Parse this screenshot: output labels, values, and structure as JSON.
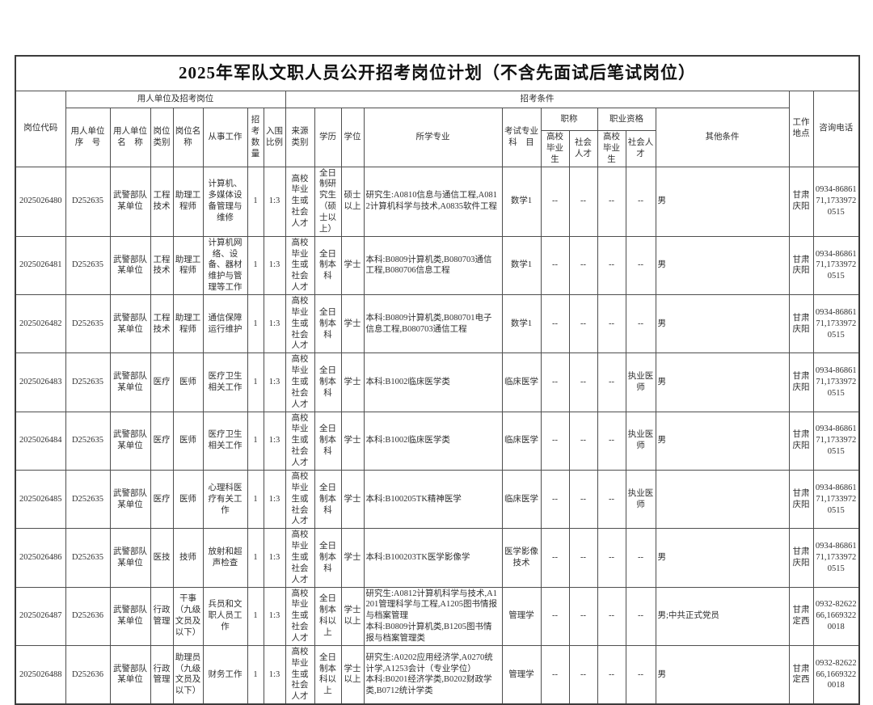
{
  "page": {
    "title": "2025年军队文职人员公开招考岗位计划（不含先面试后笔试岗位）"
  },
  "table": {
    "headers": {
      "code": "岗位代码",
      "employer_group": "用人单位及招考岗位",
      "conditions_group": "招考条件",
      "serial": "用人单位序　号",
      "unit": "用人单位名　称",
      "category": "岗位类别",
      "post": "岗位名称",
      "work": "从事工作",
      "count": "招考数量",
      "ratio": "入围比例",
      "source": "来源类别",
      "edu": "学历",
      "degree": "学位",
      "majors": "所学专业",
      "subject": "考试专业科　目",
      "title_group": "职称",
      "qual_group": "职业资格",
      "other": "其他条件",
      "location": "工作地点",
      "phone": "咨询电话"
    },
    "subsub": [
      "高校毕业生",
      "社会人才",
      "高校毕业生",
      "社会人才"
    ],
    "field_order": [
      "code",
      "serial",
      "unit",
      "category",
      "post",
      "work",
      "count",
      "ratio",
      "source",
      "edu",
      "degree",
      "majors",
      "subject",
      "title_grad",
      "title_social",
      "qual_grad",
      "qual_social",
      "other",
      "location",
      "phone"
    ],
    "rows": [
      {
        "code": "2025026480",
        "serial": "D252635",
        "unit": "武警部队某单位",
        "category": "工程技术",
        "post": "助理工程师",
        "work": "计算机、多媒体设备管理与维修",
        "count": "1",
        "ratio": "1:3",
        "source": "高校毕业生或社会人才",
        "edu": "全日制研究生（硕士以上）",
        "degree": "硕士以上",
        "majors": "研究生:A0810信息与通信工程,A0812计算机科学与技术,A0835软件工程",
        "subject": "数学1",
        "title_grad": "--",
        "title_social": "--",
        "qual_grad": "--",
        "qual_social": "--",
        "other": "男",
        "location": "甘肃庆阳",
        "phone": "0934-8686171,17339720515"
      },
      {
        "code": "2025026481",
        "serial": "D252635",
        "unit": "武警部队某单位",
        "category": "工程技术",
        "post": "助理工程师",
        "work": "计算机网络、设备、器材维护与管理等工作",
        "count": "1",
        "ratio": "1:3",
        "source": "高校毕业生或社会人才",
        "edu": "全日制本科",
        "degree": "学士",
        "majors": "本科:B0809计算机类,B080703通信工程,B080706信息工程",
        "subject": "数学1",
        "title_grad": "--",
        "title_social": "--",
        "qual_grad": "--",
        "qual_social": "--",
        "other": "男",
        "location": "甘肃庆阳",
        "phone": "0934-8686171,17339720515"
      },
      {
        "code": "2025026482",
        "serial": "D252635",
        "unit": "武警部队某单位",
        "category": "工程技术",
        "post": "助理工程师",
        "work": "通信保障运行维护",
        "count": "1",
        "ratio": "1:3",
        "source": "高校毕业生或社会人才",
        "edu": "全日制本科",
        "degree": "学士",
        "majors": "本科:B0809计算机类,B080701电子信息工程,B080703通信工程",
        "subject": "数学1",
        "title_grad": "--",
        "title_social": "--",
        "qual_grad": "--",
        "qual_social": "--",
        "other": "男",
        "location": "甘肃庆阳",
        "phone": "0934-8686171,17339720515"
      },
      {
        "code": "2025026483",
        "serial": "D252635",
        "unit": "武警部队某单位",
        "category": "医疗",
        "post": "医师",
        "work": "医疗卫生相关工作",
        "count": "1",
        "ratio": "1:3",
        "source": "高校毕业生或社会人才",
        "edu": "全日制本科",
        "degree": "学士",
        "majors": "本科:B1002临床医学类",
        "subject": "临床医学",
        "title_grad": "--",
        "title_social": "--",
        "qual_grad": "--",
        "qual_social": "执业医师",
        "other": "男",
        "location": "甘肃庆阳",
        "phone": "0934-8686171,17339720515"
      },
      {
        "code": "2025026484",
        "serial": "D252635",
        "unit": "武警部队某单位",
        "category": "医疗",
        "post": "医师",
        "work": "医疗卫生相关工作",
        "count": "1",
        "ratio": "1:3",
        "source": "高校毕业生或社会人才",
        "edu": "全日制本科",
        "degree": "学士",
        "majors": "本科:B1002临床医学类",
        "subject": "临床医学",
        "title_grad": "--",
        "title_social": "--",
        "qual_grad": "--",
        "qual_social": "执业医师",
        "other": "男",
        "location": "甘肃庆阳",
        "phone": "0934-8686171,17339720515"
      },
      {
        "code": "2025026485",
        "serial": "D252635",
        "unit": "武警部队某单位",
        "category": "医疗",
        "post": "医师",
        "work": "心理科医疗有关工作",
        "count": "1",
        "ratio": "1:3",
        "source": "高校毕业生或社会人才",
        "edu": "全日制本科",
        "degree": "学士",
        "majors": "本科:B100205TK精神医学",
        "subject": "临床医学",
        "title_grad": "--",
        "title_social": "--",
        "qual_grad": "--",
        "qual_social": "执业医师",
        "other": "",
        "location": "甘肃庆阳",
        "phone": "0934-8686171,17339720515"
      },
      {
        "code": "2025026486",
        "serial": "D252635",
        "unit": "武警部队某单位",
        "category": "医技",
        "post": "技师",
        "work": "放射和超声检查",
        "count": "1",
        "ratio": "1:3",
        "source": "高校毕业生或社会人才",
        "edu": "全日制本科",
        "degree": "学士",
        "majors": "本科:B100203TK医学影像学",
        "subject": "医学影像技术",
        "title_grad": "--",
        "title_social": "--",
        "qual_grad": "--",
        "qual_social": "--",
        "other": "男",
        "location": "甘肃庆阳",
        "phone": "0934-8686171,17339720515"
      },
      {
        "code": "2025026487",
        "serial": "D252636",
        "unit": "武警部队某单位",
        "category": "行政管理",
        "post": "干事（九级文员及以下）",
        "work": "兵员和文职人员工作",
        "count": "1",
        "ratio": "1:3",
        "source": "高校毕业生或社会人才",
        "edu": "全日制本科以上",
        "degree": "学士以上",
        "majors": "研究生:A0812计算机科学与技术,A1201管理科学与工程,A1205图书情报与档案管理\n本科:B0809计算机类,B1205图书情报与档案管理类",
        "subject": "管理学",
        "title_grad": "--",
        "title_social": "--",
        "qual_grad": "--",
        "qual_social": "--",
        "other": "男;中共正式党员",
        "location": "甘肃定西",
        "phone": "0932-8262266,16693220018"
      },
      {
        "code": "2025026488",
        "serial": "D252636",
        "unit": "武警部队某单位",
        "category": "行政管理",
        "post": "助理员（九级文员及以下）",
        "work": "财务工作",
        "count": "1",
        "ratio": "1:3",
        "source": "高校毕业生或社会人才",
        "edu": "全日制本科以上",
        "degree": "学士以上",
        "majors": "研究生:A0202应用经济学,A0270统计学,A1253会计（专业学位）\n本科:B0201经济学类,B0202财政学类,B0712统计学类",
        "subject": "管理学",
        "title_grad": "--",
        "title_social": "--",
        "qual_grad": "--",
        "qual_social": "--",
        "other": "男",
        "location": "甘肃定西",
        "phone": "0932-8262266,16693220018"
      }
    ]
  }
}
